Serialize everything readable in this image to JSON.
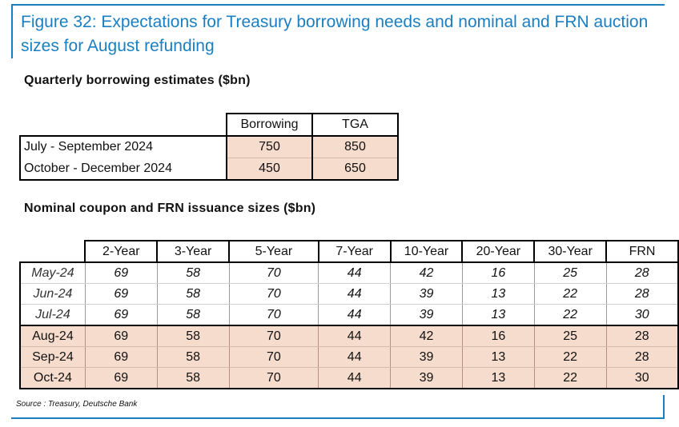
{
  "figure_title": "Figure 32: Expectations for Treasury borrowing needs and nominal and FRN auction sizes for August refunding",
  "section1_title": "Quarterly borrowing estimates ($bn)",
  "table1": {
    "headers": [
      "Borrowing",
      "TGA"
    ],
    "rows": [
      {
        "label": "July - September 2024",
        "values": [
          "750",
          "850"
        ]
      },
      {
        "label": "October - December 2024",
        "values": [
          "450",
          "650"
        ]
      }
    ]
  },
  "section2_title": "Nominal coupon and FRN issuance sizes ($bn)",
  "table2": {
    "headers": [
      "2-Year",
      "3-Year",
      "5-Year",
      "7-Year",
      "10-Year",
      "20-Year",
      "30-Year",
      "FRN"
    ],
    "rows": [
      {
        "label": "May-24",
        "values": [
          "69",
          "58",
          "70",
          "44",
          "42",
          "16",
          "25",
          "28"
        ]
      },
      {
        "label": "Jun-24",
        "values": [
          "69",
          "58",
          "70",
          "44",
          "39",
          "13",
          "22",
          "28"
        ]
      },
      {
        "label": "Jul-24",
        "values": [
          "69",
          "58",
          "70",
          "44",
          "39",
          "13",
          "22",
          "30"
        ]
      },
      {
        "label": "Aug-24",
        "values": [
          "69",
          "58",
          "70",
          "44",
          "42",
          "16",
          "25",
          "28"
        ]
      },
      {
        "label": "Sep-24",
        "values": [
          "69",
          "58",
          "70",
          "44",
          "39",
          "13",
          "22",
          "28"
        ]
      },
      {
        "label": "Oct-24",
        "values": [
          "69",
          "58",
          "70",
          "44",
          "39",
          "13",
          "22",
          "30"
        ]
      }
    ]
  },
  "source": "Source : Treasury, Deutsche Bank",
  "colors": {
    "accent": "#1a7fc1",
    "highlight": "#f6dccd"
  }
}
